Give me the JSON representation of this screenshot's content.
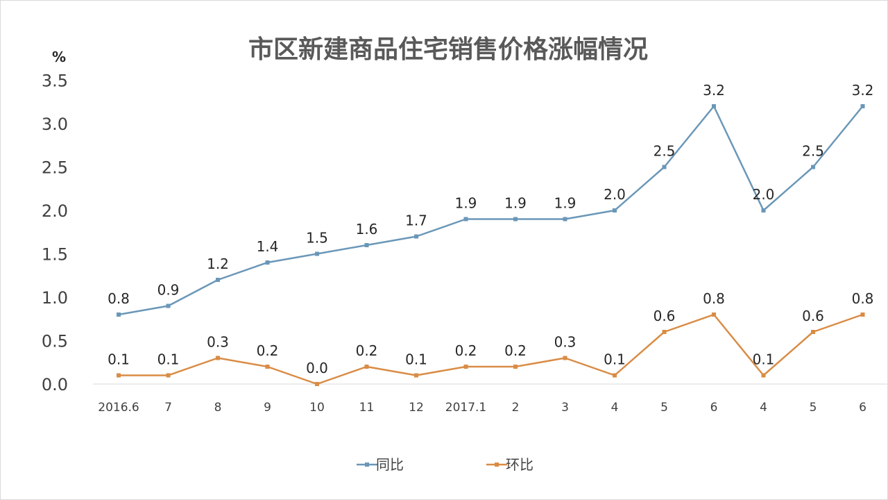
{
  "chart_data": {
    "type": "line",
    "title": "市区新建商品住宅销售价格涨幅情况",
    "unit_label": "%",
    "categories": [
      "2016.6",
      "7",
      "8",
      "9",
      "10",
      "11",
      "12",
      "2017.1",
      "2",
      "3",
      "4",
      "5",
      "6",
      "4",
      "5",
      "6"
    ],
    "y_ticks": [
      "0.0",
      "0.5",
      "1.0",
      "1.5",
      "2.0",
      "2.5",
      "3.0",
      "3.5"
    ],
    "ylim": [
      0,
      3.5
    ],
    "grid": false,
    "legend_position": "bottom",
    "series": [
      {
        "name": "同比",
        "color": "#6a97b8",
        "values": [
          0.8,
          0.9,
          1.2,
          1.4,
          1.5,
          1.6,
          1.7,
          1.9,
          1.9,
          1.9,
          2.0,
          2.5,
          3.2,
          2.0,
          2.5,
          3.2
        ],
        "labels": [
          "0.8",
          "0.9",
          "1.2",
          "1.4",
          "1.5",
          "1.6",
          "1.7",
          "1.9",
          "1.9",
          "1.9",
          "2.0",
          "2.5",
          "3.2",
          "2.0",
          "2.5",
          "3.2"
        ]
      },
      {
        "name": "环比",
        "color": "#d98c45",
        "values": [
          0.1,
          0.1,
          0.3,
          0.2,
          0.0,
          0.2,
          0.1,
          0.2,
          0.2,
          0.3,
          0.1,
          0.6,
          0.8,
          0.1,
          0.6,
          0.8
        ],
        "labels": [
          "0.1",
          "0.1",
          "0.3",
          "0.2",
          "0.0",
          "0.2",
          "0.1",
          "0.2",
          "0.2",
          "0.3",
          "0.1",
          "0.6",
          "0.8",
          "0.1",
          "0.6",
          "0.8"
        ]
      }
    ]
  }
}
